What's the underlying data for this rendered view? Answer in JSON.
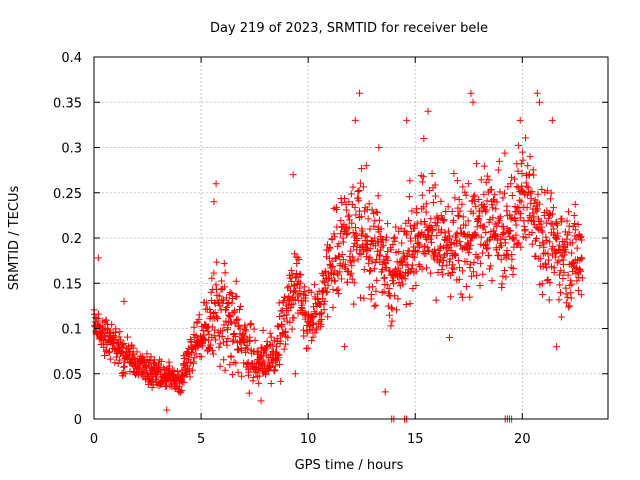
{
  "chart_data": {
    "type": "scatter",
    "title": "Day 219 of 2023, SRMTID for receiver bele",
    "xlabel": "GPS time / hours",
    "ylabel": "SRMTID / TECUs",
    "xlim": [
      0,
      24
    ],
    "ylim": [
      0,
      0.4
    ],
    "xticks": [
      0,
      5,
      10,
      15,
      20
    ],
    "xtick_labels": [
      "0",
      "5",
      "10",
      "15",
      "20"
    ],
    "yticks": [
      0,
      0.05,
      0.1,
      0.15,
      0.2,
      0.25,
      0.3,
      0.35,
      0.4
    ],
    "ytick_labels": [
      "0",
      "0.05",
      "0.1",
      "0.15",
      "0.2",
      "0.25",
      "0.3",
      "0.35",
      "0.4"
    ],
    "grid": true,
    "marker": "+",
    "color": "#ff0000",
    "series": [
      {
        "name": "SRMTID",
        "trend": [
          [
            0.0,
            0.11
          ],
          [
            0.5,
            0.095
          ],
          [
            1.0,
            0.08
          ],
          [
            1.5,
            0.07
          ],
          [
            2.0,
            0.06
          ],
          [
            2.5,
            0.055
          ],
          [
            3.0,
            0.05
          ],
          [
            3.5,
            0.045
          ],
          [
            4.0,
            0.04
          ],
          [
            4.5,
            0.07
          ],
          [
            5.0,
            0.09
          ],
          [
            5.5,
            0.11
          ],
          [
            6.0,
            0.12
          ],
          [
            6.5,
            0.11
          ],
          [
            7.0,
            0.08
          ],
          [
            7.5,
            0.065
          ],
          [
            8.0,
            0.06
          ],
          [
            8.5,
            0.07
          ],
          [
            9.0,
            0.12
          ],
          [
            9.5,
            0.15
          ],
          [
            10.0,
            0.11
          ],
          [
            10.5,
            0.12
          ],
          [
            11.0,
            0.17
          ],
          [
            11.5,
            0.19
          ],
          [
            12.0,
            0.2
          ],
          [
            12.5,
            0.2
          ],
          [
            13.0,
            0.19
          ],
          [
            13.5,
            0.18
          ],
          [
            14.0,
            0.16
          ],
          [
            14.5,
            0.18
          ],
          [
            15.0,
            0.2
          ],
          [
            15.5,
            0.21
          ],
          [
            16.0,
            0.2
          ],
          [
            16.5,
            0.19
          ],
          [
            17.0,
            0.2
          ],
          [
            17.5,
            0.2
          ],
          [
            18.0,
            0.21
          ],
          [
            18.5,
            0.22
          ],
          [
            19.0,
            0.2
          ],
          [
            19.5,
            0.21
          ],
          [
            20.0,
            0.25
          ],
          [
            20.5,
            0.24
          ],
          [
            21.0,
            0.2
          ],
          [
            21.5,
            0.19
          ],
          [
            22.0,
            0.18
          ],
          [
            22.5,
            0.18
          ]
        ],
        "spread": [
          [
            0,
            0.02
          ],
          [
            4,
            0.015
          ],
          [
            5,
            0.03
          ],
          [
            6,
            0.05
          ],
          [
            8,
            0.025
          ],
          [
            9,
            0.04
          ],
          [
            10.5,
            0.03
          ],
          [
            11,
            0.05
          ],
          [
            12.5,
            0.07
          ],
          [
            14,
            0.05
          ],
          [
            16,
            0.06
          ],
          [
            18,
            0.06
          ],
          [
            20,
            0.06
          ],
          [
            22.5,
            0.05
          ]
        ],
        "outliers": [
          [
            0.2,
            0.178
          ],
          [
            1.4,
            0.13
          ],
          [
            5.7,
            0.26
          ],
          [
            5.6,
            0.24
          ],
          [
            9.3,
            0.27
          ],
          [
            12.4,
            0.36
          ],
          [
            12.2,
            0.33
          ],
          [
            13.3,
            0.3
          ],
          [
            14.6,
            0.33
          ],
          [
            15.6,
            0.34
          ],
          [
            15.4,
            0.31
          ],
          [
            17.6,
            0.36
          ],
          [
            17.7,
            0.35
          ],
          [
            20.7,
            0.36
          ],
          [
            20.8,
            0.35
          ],
          [
            19.9,
            0.33
          ],
          [
            21.4,
            0.33
          ],
          [
            13.6,
            0.03
          ],
          [
            9.4,
            0.05
          ],
          [
            3.4,
            0.01
          ],
          [
            7.8,
            0.02
          ],
          [
            21.6,
            0.08
          ],
          [
            16.6,
            0.09
          ],
          [
            11.7,
            0.08
          ]
        ],
        "baseline_points": [
          [
            13.9,
            0.0
          ],
          [
            14.0,
            0.0
          ],
          [
            14.5,
            0.0
          ],
          [
            14.6,
            0.0
          ],
          [
            19.2,
            0.0
          ],
          [
            19.3,
            0.0
          ],
          [
            19.4,
            0.0
          ],
          [
            19.5,
            0.0
          ]
        ]
      }
    ]
  }
}
